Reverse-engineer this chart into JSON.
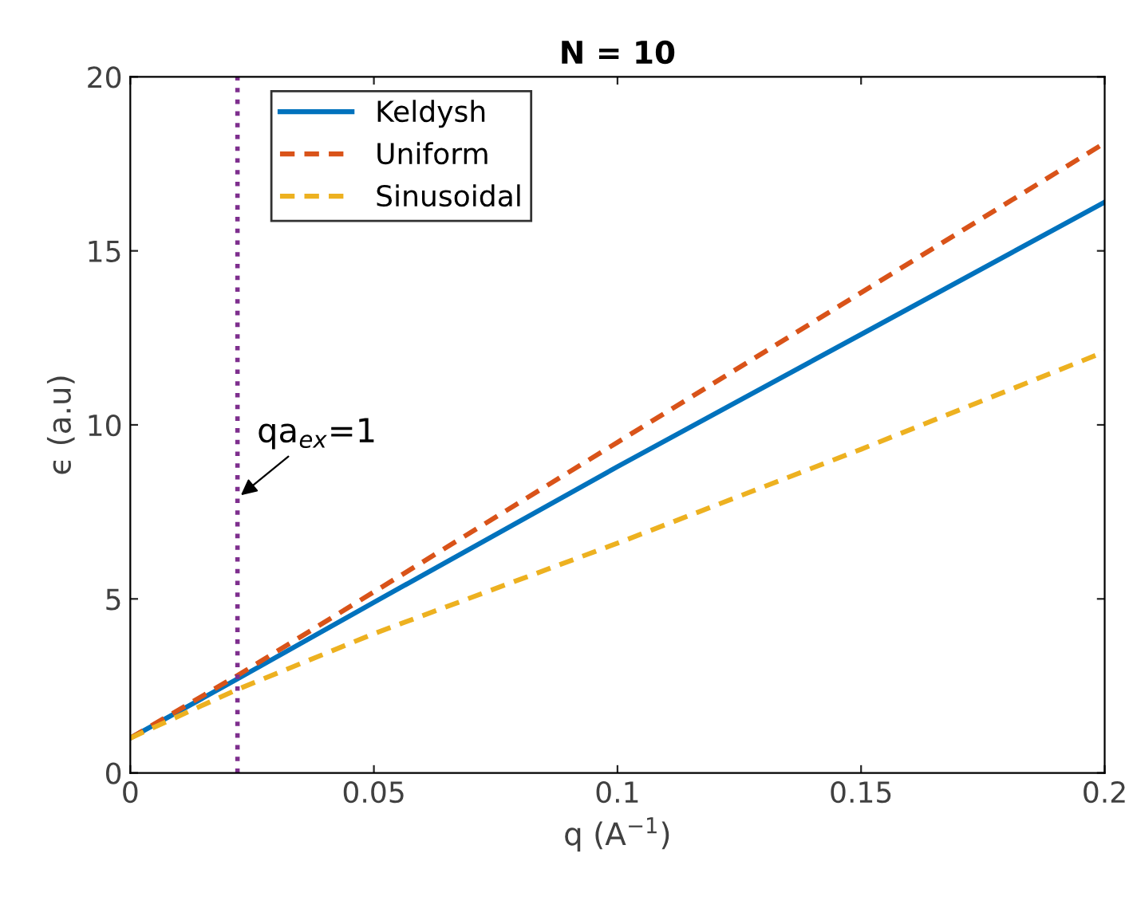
{
  "chart_data": {
    "type": "line",
    "title": "N = 10",
    "xlabel": "q (A$^{−1}$)",
    "ylabel": "ϵ (a.u)",
    "xlim": [
      0,
      0.2
    ],
    "ylim": [
      0,
      20
    ],
    "xticks": [
      0,
      0.05,
      0.1,
      0.15,
      0.2
    ],
    "yticks": [
      0,
      5,
      10,
      15,
      20
    ],
    "grid": false,
    "legend": "top left",
    "series": [
      {
        "name": "Keldysh",
        "color": "#0072bd",
        "line_style": "solid",
        "x": [
          0,
          0.022,
          0.05,
          0.1,
          0.15,
          0.2
        ],
        "values": [
          1,
          2.7,
          4.9,
          8.8,
          12.6,
          16.4
        ]
      },
      {
        "name": "Uniform",
        "color": "#d95319",
        "line_style": "dashed",
        "x": [
          0,
          0.022,
          0.05,
          0.1,
          0.15,
          0.2
        ],
        "values": [
          1,
          2.8,
          5.2,
          9.5,
          13.8,
          18.1
        ]
      },
      {
        "name": "Sinusoidal",
        "color": "#edb120",
        "line_style": "dashed",
        "x": [
          0,
          0.022,
          0.05,
          0.1,
          0.15,
          0.2
        ],
        "values": [
          1,
          2.4,
          4.0,
          6.6,
          9.3,
          12.1
        ]
      }
    ],
    "ref_lines": [
      {
        "axis": "x",
        "value": 0.022,
        "color": "#7e2f8e",
        "line_style": "dotted"
      }
    ],
    "annotations": [
      {
        "text": "qa$_{ex}$=1",
        "x": 0.022,
        "y": 7.9
      }
    ]
  }
}
